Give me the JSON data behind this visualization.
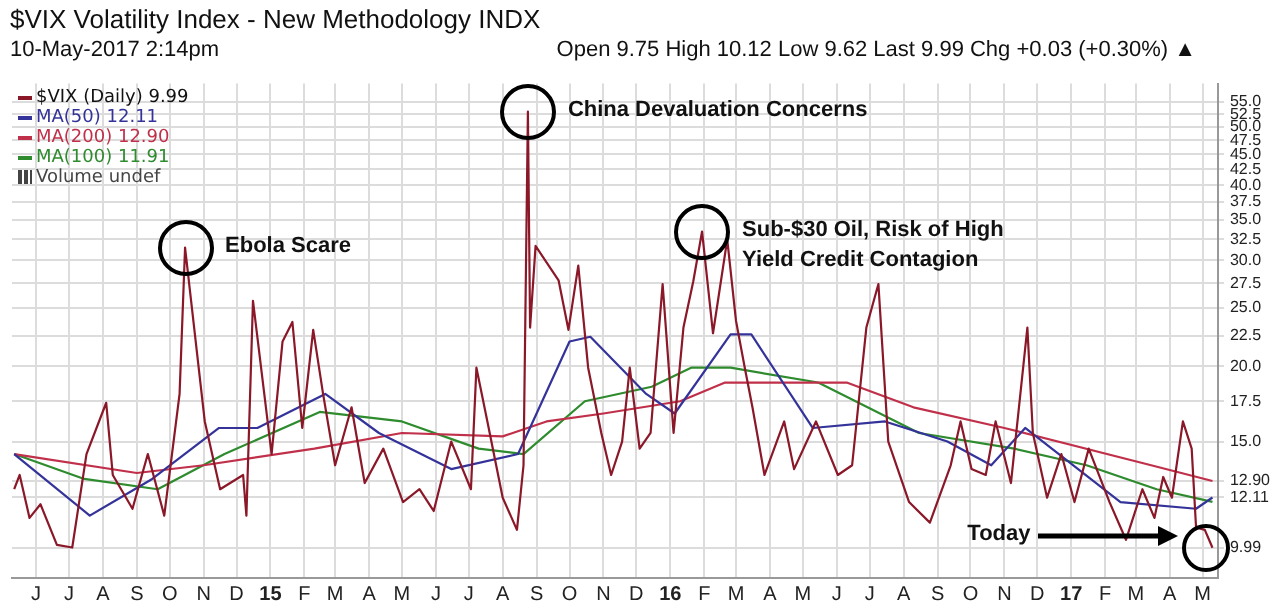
{
  "chart_data": {
    "type": "line",
    "title": "$VIX Volatility Index - New Methodology INDX",
    "subtitle": "10-May-2017 2:14pm",
    "annotations": [
      "Open 9.75 High 10.12 Low 9.62 Last 9.99 Chg +0.03 (+0.30%) ▲",
      "Volume undef",
      {
        "text": "Ebola Scare",
        "x": "2014-10-15",
        "y": 31.5
      },
      {
        "text": "China Devaluation Concerns",
        "x": "2015-08-24",
        "y": 53
      },
      {
        "text": "Sub-$30 Oil, Risk of High Yield Credit Contagion",
        "x": "2016-01-30",
        "y": 33.5
      },
      "Today"
    ],
    "legend": "top left",
    "grid": true,
    "log": "y",
    "marker": "none",
    "xlim": [
      "2014-05-10",
      "2017-05-15"
    ],
    "ylim": [
      8.9,
      59
    ],
    "xticks": [
      {
        "value": "2014-06",
        "label": "J"
      },
      {
        "value": "2014-07",
        "label": "J"
      },
      {
        "value": "2014-08",
        "label": "A"
      },
      {
        "value": "2014-09",
        "label": "S"
      },
      {
        "value": "2014-10",
        "label": "O"
      },
      {
        "value": "2014-11",
        "label": "N"
      },
      {
        "value": "2014-12",
        "label": "D"
      },
      {
        "value": "2015-01",
        "label": "15"
      },
      {
        "value": "2015-02",
        "label": "F"
      },
      {
        "value": "2015-03",
        "label": "M"
      },
      {
        "value": "2015-04",
        "label": "A"
      },
      {
        "value": "2015-05",
        "label": "M"
      },
      {
        "value": "2015-06",
        "label": "J"
      },
      {
        "value": "2015-07",
        "label": "J"
      },
      {
        "value": "2015-08",
        "label": "A"
      },
      {
        "value": "2015-09",
        "label": "S"
      },
      {
        "value": "2015-10",
        "label": "O"
      },
      {
        "value": "2015-11",
        "label": "N"
      },
      {
        "value": "2015-12",
        "label": "D"
      },
      {
        "value": "2016-01",
        "label": "16"
      },
      {
        "value": "2016-02",
        "label": "F"
      },
      {
        "value": "2016-03",
        "label": "M"
      },
      {
        "value": "2016-04",
        "label": "A"
      },
      {
        "value": "2016-05",
        "label": "M"
      },
      {
        "value": "2016-06",
        "label": "J"
      },
      {
        "value": "2016-07",
        "label": "J"
      },
      {
        "value": "2016-08",
        "label": "A"
      },
      {
        "value": "2016-09",
        "label": "S"
      },
      {
        "value": "2016-10",
        "label": "O"
      },
      {
        "value": "2016-11",
        "label": "N"
      },
      {
        "value": "2016-12",
        "label": "D"
      },
      {
        "value": "2017-01",
        "label": "17"
      },
      {
        "value": "2017-02",
        "label": "F"
      },
      {
        "value": "2017-03",
        "label": "M"
      },
      {
        "value": "2017-04",
        "label": "A"
      },
      {
        "value": "2017-05",
        "label": "M"
      }
    ],
    "yticks": [
      {
        "value": 55,
        "label": "55.0"
      },
      {
        "value": 52.5,
        "label": "52.5"
      },
      {
        "value": 50,
        "label": "50.0"
      },
      {
        "value": 47.5,
        "label": "47.5"
      },
      {
        "value": 45,
        "label": "45.0"
      },
      {
        "value": 42.5,
        "label": "42.5"
      },
      {
        "value": 40,
        "label": "40.0"
      },
      {
        "value": 37.5,
        "label": "37.5"
      },
      {
        "value": 35,
        "label": "35.0"
      },
      {
        "value": 32.5,
        "label": "32.5"
      },
      {
        "value": 30,
        "label": "30.0"
      },
      {
        "value": 27.5,
        "label": "27.5"
      },
      {
        "value": 25,
        "label": "25.0"
      },
      {
        "value": 22.5,
        "label": "22.5"
      },
      {
        "value": 20,
        "label": "20.0"
      },
      {
        "value": 17.5,
        "label": "17.5"
      },
      {
        "value": 15,
        "label": "15.0"
      },
      {
        "value": 12.9,
        "label": "12.90"
      },
      {
        "value": 12.11,
        "label": "12.11"
      },
      {
        "value": 9.99,
        "label": "9.99"
      }
    ],
    "series": [
      {
        "name": "$VIX (Daily) 9.99",
        "color": "#8a1828",
        "x": [
          "2014-05-12",
          "2014-05-17",
          "2014-05-26",
          "2014-06-05",
          "2014-06-20",
          "2014-07-04",
          "2014-07-17",
          "2014-08-04",
          "2014-08-10",
          "2014-08-28",
          "2014-09-11",
          "2014-09-26",
          "2014-10-10",
          "2014-10-15",
          "2014-11-02",
          "2014-11-16",
          "2014-12-07",
          "2014-12-10",
          "2014-12-16",
          "2015-01-02",
          "2015-01-12",
          "2015-01-21",
          "2015-01-30",
          "2015-02-09",
          "2015-02-18",
          "2015-03-01",
          "2015-03-16",
          "2015-03-28",
          "2015-04-14",
          "2015-05-02",
          "2015-05-17",
          "2015-05-30",
          "2015-06-15",
          "2015-07-03",
          "2015-07-08",
          "2015-07-18",
          "2015-08-01",
          "2015-08-14",
          "2015-08-20",
          "2015-08-24",
          "2015-08-26",
          "2015-08-31",
          "2015-09-21",
          "2015-09-30",
          "2015-10-09",
          "2015-10-18",
          "2015-10-30",
          "2015-11-08",
          "2015-11-18",
          "2015-11-25",
          "2015-12-04",
          "2015-12-14",
          "2015-12-25",
          "2016-01-04",
          "2016-01-13",
          "2016-01-22",
          "2016-01-30",
          "2016-02-09",
          "2016-02-22",
          "2016-03-01",
          "2016-03-09",
          "2016-03-16",
          "2016-03-27",
          "2016-04-14",
          "2016-04-23",
          "2016-05-13",
          "2016-06-02",
          "2016-06-15",
          "2016-06-28",
          "2016-07-09",
          "2016-07-18",
          "2016-08-06",
          "2016-08-25",
          "2016-09-13",
          "2016-09-22",
          "2016-10-02",
          "2016-10-15",
          "2016-10-24",
          "2016-11-07",
          "2016-11-22",
          "2016-11-27",
          "2016-12-10",
          "2016-12-23",
          "2017-01-04",
          "2017-01-17",
          "2017-02-05",
          "2017-02-20",
          "2017-03-07",
          "2017-03-18",
          "2017-03-26",
          "2017-04-03",
          "2017-04-13",
          "2017-04-21",
          "2017-04-25",
          "2017-05-03",
          "2017-05-10"
        ],
        "values": [
          12.5,
          13.2,
          11.2,
          11.8,
          10.1,
          10.0,
          14.3,
          17.4,
          13.2,
          11.6,
          14.3,
          11.3,
          18.0,
          31.5,
          16.2,
          12.5,
          13.2,
          11.3,
          25.7,
          14.3,
          22.0,
          23.7,
          15.8,
          23.0,
          18.0,
          13.7,
          17.1,
          12.8,
          14.6,
          11.9,
          12.5,
          11.5,
          15.0,
          12.5,
          19.9,
          16.2,
          12.1,
          10.7,
          13.7,
          53.0,
          23.2,
          31.7,
          27.8,
          23.0,
          29.4,
          19.9,
          15.5,
          13.2,
          15.0,
          19.9,
          14.6,
          15.5,
          27.4,
          15.5,
          23.2,
          27.7,
          33.5,
          22.7,
          32.5,
          23.8,
          19.9,
          17.1,
          13.2,
          16.2,
          13.5,
          16.2,
          13.2,
          13.7,
          23.2,
          27.4,
          15.0,
          11.9,
          11.0,
          13.7,
          16.2,
          13.5,
          13.2,
          16.2,
          12.8,
          23.2,
          15.5,
          12.1,
          14.3,
          11.9,
          14.6,
          11.9,
          10.3,
          12.5,
          11.2,
          13.1,
          12.1,
          16.2,
          14.6,
          10.8,
          10.7,
          9.99
        ]
      },
      {
        "name": "MA(50) 12.11",
        "color": "#33339a",
        "x": [
          "2014-05-12",
          "2014-07-20",
          "2014-09-15",
          "2014-11-15",
          "2014-12-20",
          "2015-02-20",
          "2015-04-10",
          "2015-06-15",
          "2015-08-15",
          "2015-10-01",
          "2015-10-20",
          "2015-12-10",
          "2016-01-05",
          "2016-02-25",
          "2016-03-15",
          "2016-05-10",
          "2016-07-15",
          "2016-09-10",
          "2016-10-20",
          "2016-11-20",
          "2017-02-15",
          "2017-04-25",
          "2017-05-10"
        ],
        "values": [
          14.3,
          11.3,
          13.0,
          15.8,
          15.8,
          18.0,
          15.5,
          13.5,
          14.3,
          22.0,
          22.4,
          18.0,
          16.7,
          22.6,
          22.6,
          15.8,
          16.2,
          15.0,
          13.7,
          15.8,
          11.9,
          11.6,
          12.11
        ]
      },
      {
        "name": "MA(200) 12.90",
        "color": "#c0304a",
        "x": [
          "2014-05-12",
          "2014-09-01",
          "2014-11-01",
          "2015-02-10",
          "2015-05-01",
          "2015-08-01",
          "2015-09-10",
          "2015-11-01",
          "2016-01-10",
          "2016-02-20",
          "2016-06-10",
          "2016-08-10",
          "2016-11-01",
          "2017-03-15",
          "2017-05-10"
        ],
        "values": [
          14.3,
          13.3,
          13.7,
          14.6,
          15.5,
          15.3,
          16.2,
          16.7,
          17.5,
          18.8,
          18.8,
          17.1,
          15.8,
          13.7,
          12.9
        ]
      },
      {
        "name": "MA(100) 11.91",
        "color": "#2e8b2e",
        "x": [
          "2014-05-12",
          "2014-07-15",
          "2014-09-20",
          "2014-11-20",
          "2015-02-15",
          "2015-05-01",
          "2015-07-10",
          "2015-08-20",
          "2015-10-15",
          "2015-12-15",
          "2016-01-20",
          "2016-02-25",
          "2016-05-15",
          "2016-08-15",
          "2016-11-10",
          "2017-01-15",
          "2017-03-20",
          "2017-05-10"
        ],
        "values": [
          14.3,
          13.0,
          12.5,
          14.3,
          16.8,
          16.2,
          14.6,
          14.3,
          17.5,
          18.5,
          19.9,
          19.9,
          18.8,
          15.5,
          14.6,
          13.7,
          12.5,
          11.91
        ]
      }
    ]
  }
}
